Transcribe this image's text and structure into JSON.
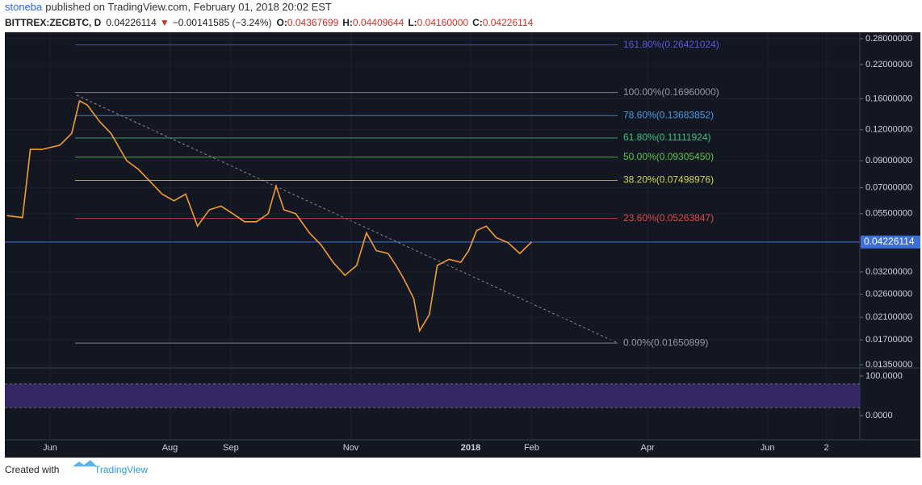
{
  "header": {
    "author": "stoneba",
    "published": "published on TradingView.com, February 01, 2018 20:02 EST",
    "symbol": "BITTREX:ZECBTC, D",
    "last": "0.04226114",
    "arrow": "▼",
    "change": "−0.00141585 (−3.24%)",
    "open_label": "O:",
    "open": "0.04367699",
    "high_label": "H:",
    "high": "0.04409644",
    "low_label": "L:",
    "low": "0.04160000",
    "close_label": "C:",
    "close": "0.04226114"
  },
  "footer": {
    "created": "Created with",
    "brand": "TradingView"
  },
  "chart_data": [
    {
      "type": "line",
      "log_scale": true,
      "grid": true,
      "xlim": [
        "2017-05-09",
        "2018-07-18"
      ],
      "xticks": [
        {
          "value": "2017-06",
          "label": "Jun"
        },
        {
          "value": "2017-08",
          "label": "Aug"
        },
        {
          "value": "2017-09",
          "label": "Sep"
        },
        {
          "value": "2017-11",
          "label": "Nov"
        },
        {
          "value": "2018-01",
          "label": "2018"
        },
        {
          "value": "2018-02",
          "label": "Feb"
        },
        {
          "value": "2018-04",
          "label": "Apr"
        },
        {
          "value": "2018-06",
          "label": "Jun"
        },
        {
          "value": "2018-07",
          "label": "2"
        }
      ],
      "ylim": [
        0.0132,
        0.297
      ],
      "yticks": [
        {
          "value": 0.28,
          "label": "0.28000000"
        },
        {
          "value": 0.22,
          "label": "0.22000000"
        },
        {
          "value": 0.16,
          "label": "0.16000000"
        },
        {
          "value": 0.12,
          "label": "0.12000000"
        },
        {
          "value": 0.09,
          "label": "0.09000000"
        },
        {
          "value": 0.07,
          "label": "0.07000000"
        },
        {
          "value": 0.055,
          "label": "0.05500000"
        },
        {
          "value": 0.032,
          "label": "0.03200000"
        },
        {
          "value": 0.026,
          "label": "0.02600000"
        },
        {
          "value": 0.021,
          "label": "0.02100000"
        },
        {
          "value": 0.017,
          "label": "0.01700000"
        },
        {
          "value": 0.0135,
          "label": "0.01350000"
        }
      ],
      "last_price": 0.04226114,
      "last_price_color": "#3d6fd6",
      "fib_levels": [
        {
          "label": "161.80%(0.26421024)",
          "value": 0.26421024,
          "color": "#5a5ae0"
        },
        {
          "label": "100.00%(0.16960000)",
          "value": 0.1696,
          "color": "#9598a1"
        },
        {
          "label": "78.60%(0.13683852)",
          "value": 0.13683852,
          "color": "#4a9be0"
        },
        {
          "label": "61.80%(0.11111924)",
          "value": 0.11111924,
          "color": "#3cc47c"
        },
        {
          "label": "50.00%(0.09305450)",
          "value": 0.0930545,
          "color": "#5fc44a"
        },
        {
          "label": "38.20%(0.07498976)",
          "value": 0.07498976,
          "color": "#d6d64a"
        },
        {
          "label": "23.60%(0.05263847)",
          "value": 0.05263847,
          "color": "#e04848"
        },
        {
          "label": "0.00%(0.01650899)",
          "value": 0.01650899,
          "color": "#9598a1"
        }
      ],
      "series": [
        {
          "color": "#f39c34",
          "x": [
            "2017-05-10",
            "2017-05-18",
            "2017-05-22",
            "2017-05-28",
            "2017-06-06",
            "2017-06-12",
            "2017-06-16",
            "2017-06-20",
            "2017-06-26",
            "2017-07-02",
            "2017-07-10",
            "2017-07-16",
            "2017-07-22",
            "2017-07-28",
            "2017-08-03",
            "2017-08-09",
            "2017-08-15",
            "2017-08-21",
            "2017-08-27",
            "2017-09-02",
            "2017-09-08",
            "2017-09-14",
            "2017-09-20",
            "2017-09-24",
            "2017-09-28",
            "2017-10-04",
            "2017-10-11",
            "2017-10-17",
            "2017-10-23",
            "2017-10-29",
            "2017-11-04",
            "2017-11-09",
            "2017-11-14",
            "2017-11-20",
            "2017-11-24",
            "2017-11-28",
            "2017-12-03",
            "2017-12-06",
            "2017-12-11",
            "2017-12-15",
            "2017-12-21",
            "2017-12-27",
            "2017-12-31",
            "2018-01-04",
            "2018-01-09",
            "2018-01-14",
            "2018-01-20",
            "2018-01-26",
            "2018-02-01"
          ],
          "values": [
            0.054,
            0.053,
            0.1,
            0.1,
            0.104,
            0.116,
            0.157,
            0.151,
            0.13,
            0.116,
            0.09,
            0.083,
            0.074,
            0.066,
            0.062,
            0.066,
            0.049,
            0.057,
            0.059,
            0.055,
            0.051,
            0.051,
            0.055,
            0.071,
            0.057,
            0.055,
            0.046,
            0.041,
            0.035,
            0.031,
            0.034,
            0.046,
            0.039,
            0.038,
            0.034,
            0.03,
            0.025,
            0.0185,
            0.0215,
            0.034,
            0.036,
            0.035,
            0.039,
            0.047,
            0.049,
            0.044,
            0.042,
            0.038,
            0.04226114
          ]
        }
      ]
    },
    {
      "type": "band",
      "ylim": [
        -61,
        116
      ],
      "yticks": [
        {
          "value": 100,
          "label": "100.0000"
        },
        {
          "value": 0,
          "label": "0.0000"
        }
      ],
      "band": [
        20,
        80
      ],
      "band_color": "#3b2a6e"
    }
  ]
}
